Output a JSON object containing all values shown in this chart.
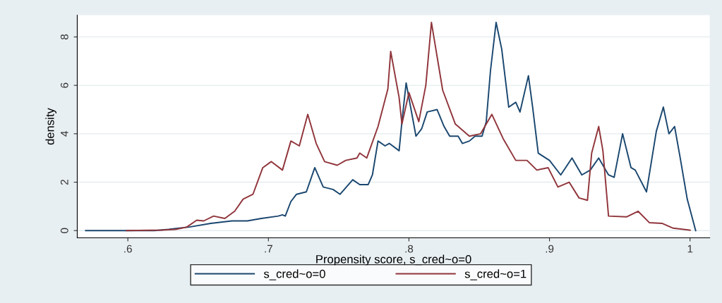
{
  "chart_data": {
    "type": "line",
    "xlabel": "Propensity score, s_cred~o=0",
    "ylabel": "density",
    "xlim": [
      0.564,
      1.014
    ],
    "ylim": [
      -0.3,
      8.9
    ],
    "xticks": [
      {
        "value": 0.6,
        "label": ".6"
      },
      {
        "value": 0.7,
        "label": ".7"
      },
      {
        "value": 0.8,
        "label": ".8"
      },
      {
        "value": 0.9,
        "label": ".9"
      },
      {
        "value": 1,
        "label": "1"
      }
    ],
    "yticks": [
      0,
      2,
      4,
      6,
      8
    ],
    "grid": "y",
    "legend": "bottom",
    "marker": "none",
    "line_style": "solid",
    "series": [
      {
        "name": "s_cred~o=0",
        "color": "#1a476f",
        "x": [
          0.57,
          0.619,
          0.629,
          0.644,
          0.659,
          0.674,
          0.685,
          0.695,
          0.707,
          0.71,
          0.712,
          0.716,
          0.72,
          0.727,
          0.733,
          0.739,
          0.746,
          0.751,
          0.76,
          0.765,
          0.771,
          0.774,
          0.778,
          0.783,
          0.786,
          0.793,
          0.795,
          0.798,
          0.805,
          0.809,
          0.813,
          0.82,
          0.825,
          0.829,
          0.835,
          0.838,
          0.843,
          0.847,
          0.852,
          0.855,
          0.858,
          0.862,
          0.866,
          0.871,
          0.876,
          0.879,
          0.885,
          0.888,
          0.892,
          0.9,
          0.908,
          0.916,
          0.923,
          0.929,
          0.935,
          0.942,
          0.946,
          0.952,
          0.958,
          0.961,
          0.969,
          0.976,
          0.981,
          0.985,
          0.989,
          0.993,
          0.998,
          1.004
        ],
        "values": [
          0,
          0,
          0.05,
          0.15,
          0.3,
          0.4,
          0.4,
          0.5,
          0.6,
          0.65,
          0.6,
          1.2,
          1.5,
          1.6,
          2.6,
          1.8,
          1.7,
          1.5,
          2.1,
          1.9,
          1.9,
          2.3,
          3.7,
          3.5,
          3.6,
          3.3,
          4.5,
          6.1,
          3.9,
          4.2,
          4.9,
          5.0,
          4.3,
          3.9,
          3.9,
          3.6,
          3.7,
          3.9,
          3.9,
          4.5,
          6.6,
          8.6,
          7.5,
          5.1,
          5.3,
          4.9,
          6.4,
          5.1,
          3.2,
          2.9,
          2.3,
          3.0,
          2.3,
          2.5,
          3.0,
          2.3,
          2.2,
          4.0,
          2.6,
          2.5,
          1.6,
          4.1,
          5.1,
          4.0,
          4.3,
          3.0,
          1.3,
          0
        ]
      },
      {
        "name": "s_cred~o=1",
        "color": "#90353b",
        "x": [
          0.599,
          0.624,
          0.634,
          0.642,
          0.649,
          0.654,
          0.661,
          0.669,
          0.676,
          0.682,
          0.689,
          0.696,
          0.702,
          0.71,
          0.716,
          0.722,
          0.728,
          0.734,
          0.74,
          0.749,
          0.755,
          0.763,
          0.765,
          0.77,
          0.778,
          0.785,
          0.787,
          0.793,
          0.795,
          0.8,
          0.807,
          0.812,
          0.816,
          0.824,
          0.833,
          0.843,
          0.851,
          0.859,
          0.867,
          0.876,
          0.884,
          0.891,
          0.899,
          0.906,
          0.914,
          0.921,
          0.927,
          0.93,
          0.935,
          0.938,
          0.942,
          0.955,
          0.963,
          0.971,
          0.98,
          0.988,
          1.0
        ],
        "values": [
          0,
          0.02,
          0.05,
          0.15,
          0.43,
          0.4,
          0.6,
          0.5,
          0.8,
          1.3,
          1.5,
          2.6,
          2.85,
          2.5,
          3.7,
          3.5,
          4.8,
          3.6,
          2.85,
          2.7,
          2.9,
          3.0,
          3.2,
          3.0,
          4.3,
          5.85,
          7.4,
          5.5,
          4.4,
          5.7,
          4.5,
          6.0,
          8.6,
          5.8,
          4.4,
          3.9,
          4.0,
          4.8,
          3.8,
          2.9,
          2.9,
          2.5,
          2.6,
          1.8,
          2.0,
          1.35,
          1.25,
          3.2,
          4.3,
          3.3,
          0.6,
          0.57,
          0.8,
          0.33,
          0.3,
          0.1,
          0.02
        ]
      }
    ]
  }
}
